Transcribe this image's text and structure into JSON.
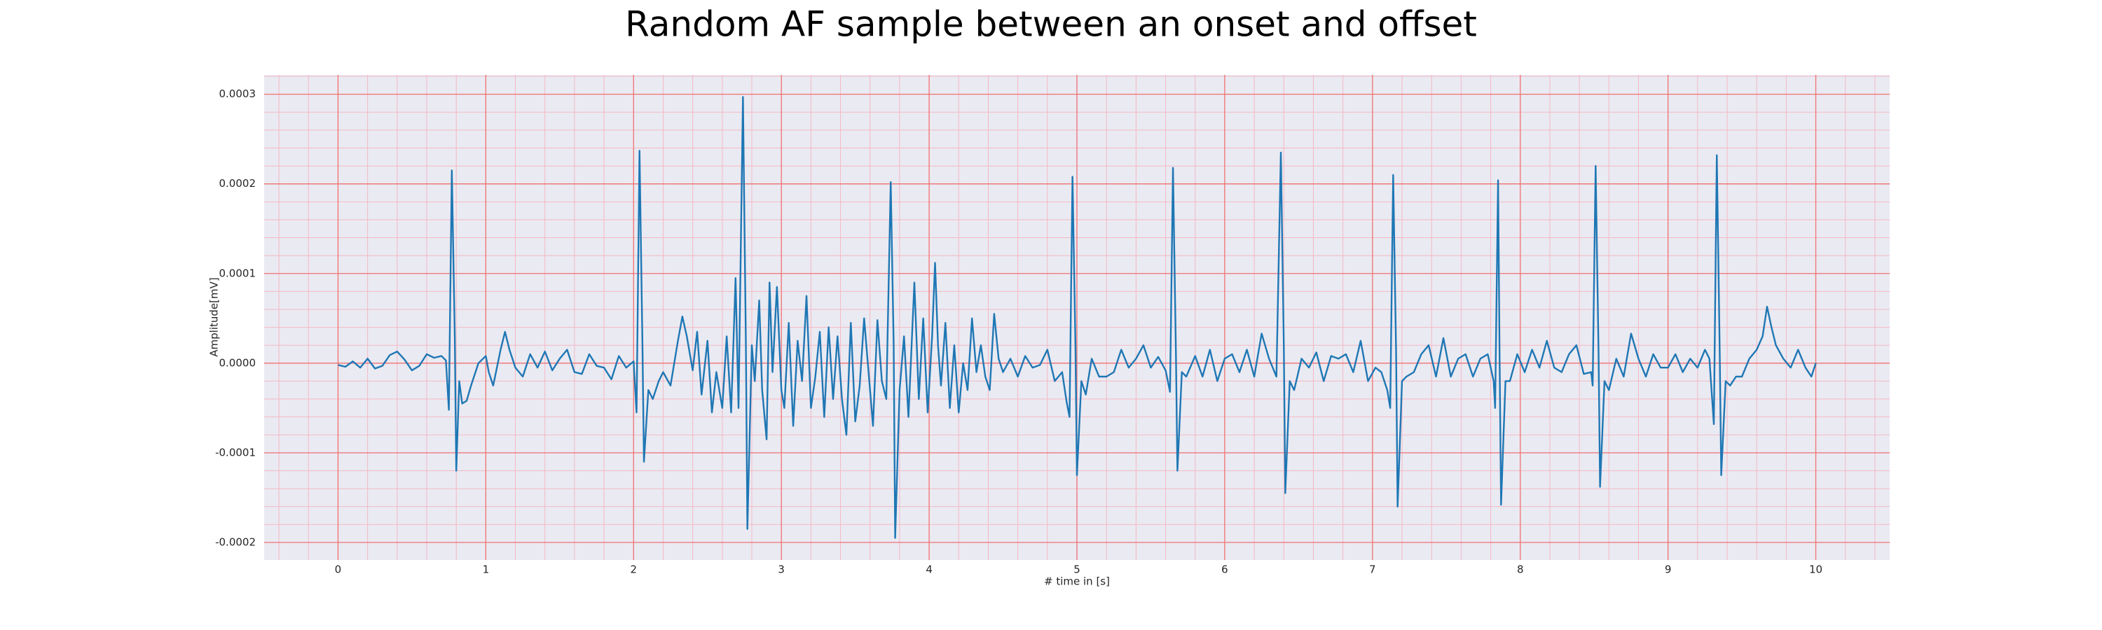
{
  "chart_data": {
    "type": "line",
    "title": "Random AF sample between an onset and offset",
    "xlabel": "# time in [s]",
    "ylabel": "Amplitude[mV]",
    "color": "#1f77b4",
    "grid": true,
    "minor_grid": true,
    "xlim": [
      -0.5,
      10.5
    ],
    "ylim": [
      -0.0002196,
      0.0003216
    ],
    "xticks": [
      0,
      1,
      2,
      3,
      4,
      5,
      6,
      7,
      8,
      9,
      10
    ],
    "yticks": [
      -0.0002,
      -0.0001,
      {
        "value": 0,
        "label": "0.0000"
      },
      0.0001,
      0.0002,
      0.0003
    ],
    "x": [
      0.0,
      0.05,
      0.1,
      0.15,
      0.2,
      0.25,
      0.3,
      0.35,
      0.4,
      0.45,
      0.5,
      0.55,
      0.6,
      0.65,
      0.7,
      0.73,
      0.75,
      0.77,
      0.79,
      0.8,
      0.82,
      0.84,
      0.87,
      0.9,
      0.95,
      1.0,
      1.02,
      1.05,
      1.1,
      1.13,
      1.16,
      1.2,
      1.25,
      1.3,
      1.35,
      1.4,
      1.45,
      1.5,
      1.55,
      1.6,
      1.65,
      1.7,
      1.75,
      1.8,
      1.85,
      1.9,
      1.95,
      2.0,
      2.02,
      2.04,
      2.06,
      2.07,
      2.1,
      2.13,
      2.17,
      2.2,
      2.25,
      2.3,
      2.33,
      2.36,
      2.4,
      2.43,
      2.46,
      2.5,
      2.53,
      2.56,
      2.6,
      2.63,
      2.66,
      2.69,
      2.71,
      2.74,
      2.76,
      2.77,
      2.8,
      2.82,
      2.85,
      2.87,
      2.9,
      2.92,
      2.94,
      2.97,
      3.0,
      3.02,
      3.05,
      3.08,
      3.11,
      3.14,
      3.17,
      3.2,
      3.23,
      3.26,
      3.29,
      3.32,
      3.35,
      3.38,
      3.41,
      3.44,
      3.47,
      3.5,
      3.53,
      3.56,
      3.59,
      3.62,
      3.65,
      3.68,
      3.71,
      3.74,
      3.76,
      3.77,
      3.8,
      3.83,
      3.86,
      3.9,
      3.93,
      3.96,
      3.99,
      4.02,
      4.04,
      4.06,
      4.08,
      4.11,
      4.14,
      4.17,
      4.2,
      4.23,
      4.26,
      4.29,
      4.32,
      4.35,
      4.38,
      4.41,
      4.44,
      4.47,
      4.5,
      4.55,
      4.6,
      4.65,
      4.7,
      4.75,
      4.8,
      4.85,
      4.9,
      4.93,
      4.95,
      4.97,
      4.99,
      5.0,
      5.03,
      5.06,
      5.1,
      5.15,
      5.2,
      5.25,
      5.3,
      5.35,
      5.4,
      5.45,
      5.5,
      5.55,
      5.6,
      5.63,
      5.65,
      5.67,
      5.68,
      5.71,
      5.74,
      5.8,
      5.85,
      5.9,
      5.95,
      6.0,
      6.05,
      6.1,
      6.15,
      6.2,
      6.25,
      6.3,
      6.35,
      6.38,
      6.4,
      6.41,
      6.44,
      6.47,
      6.52,
      6.57,
      6.62,
      6.67,
      6.72,
      6.77,
      6.82,
      6.87,
      6.92,
      6.97,
      7.02,
      7.06,
      7.1,
      7.12,
      7.14,
      7.16,
      7.17,
      7.2,
      7.23,
      7.28,
      7.33,
      7.38,
      7.43,
      7.48,
      7.53,
      7.58,
      7.63,
      7.68,
      7.73,
      7.78,
      7.82,
      7.83,
      7.85,
      7.86,
      7.87,
      7.9,
      7.93,
      7.98,
      8.03,
      8.08,
      8.13,
      8.18,
      8.23,
      8.28,
      8.33,
      8.38,
      8.43,
      8.48,
      8.49,
      8.51,
      8.53,
      8.54,
      8.57,
      8.6,
      8.65,
      8.7,
      8.75,
      8.8,
      8.85,
      8.9,
      8.95,
      9.0,
      9.05,
      9.1,
      9.15,
      9.2,
      9.25,
      9.28,
      9.31,
      9.33,
      9.35,
      9.36,
      9.39,
      9.42,
      9.46,
      9.5,
      9.55,
      9.6,
      9.64,
      9.67,
      9.7,
      9.73,
      9.78,
      9.83,
      9.88,
      9.93,
      9.97,
      10.0
    ],
    "values": [
      -2e-06,
      -4e-06,
      2e-06,
      -5e-06,
      5e-06,
      -6e-06,
      -3e-06,
      9e-06,
      1.3e-05,
      4e-06,
      -8e-06,
      -3e-06,
      1e-05,
      6e-06,
      8e-06,
      3e-06,
      -5.2e-05,
      0.000215,
      3e-05,
      -0.00012,
      -2e-05,
      -4.5e-05,
      -4.2e-05,
      -2.5e-05,
      0,
      8e-06,
      -1e-05,
      -2.5e-05,
      1.5e-05,
      3.5e-05,
      1.5e-05,
      -5e-06,
      -1.5e-05,
      1e-05,
      -5e-06,
      1.3e-05,
      -8e-06,
      5e-06,
      1.5e-05,
      -1e-05,
      -1.2e-05,
      1e-05,
      -3e-06,
      -5e-06,
      -1.8e-05,
      8e-06,
      -5e-06,
      2e-06,
      -5.5e-05,
      0.000237,
      2e-05,
      -0.00011,
      -3e-05,
      -4e-05,
      -2e-05,
      -1e-05,
      -2.5e-05,
      2.5e-05,
      5.2e-05,
      3e-05,
      -8e-06,
      3.5e-05,
      -3.5e-05,
      2.5e-05,
      -5.5e-05,
      -1e-05,
      -5e-05,
      3e-05,
      -5.5e-05,
      9.5e-05,
      -5e-05,
      0.000297,
      2e-05,
      -0.000185,
      2e-05,
      -2e-05,
      7e-05,
      -3e-05,
      -8.5e-05,
      9e-05,
      -1e-05,
      8.5e-05,
      -3e-05,
      -5e-05,
      4.5e-05,
      -7e-05,
      2.5e-05,
      -2e-05,
      7.5e-05,
      -5e-05,
      -1.5e-05,
      3.5e-05,
      -6e-05,
      4e-05,
      -4e-05,
      3e-05,
      -4e-05,
      -8e-05,
      4.5e-05,
      -6.5e-05,
      -2.5e-05,
      5e-05,
      -1e-05,
      -7e-05,
      4.8e-05,
      -2e-05,
      -4e-05,
      0.000202,
      2e-05,
      -0.000195,
      -3e-05,
      3e-05,
      -6e-05,
      9e-05,
      -4e-05,
      5e-05,
      -5.5e-05,
      3e-05,
      0.000112,
      2e-05,
      -2.5e-05,
      4.5e-05,
      -5e-05,
      2e-05,
      -5.5e-05,
      0,
      -3e-05,
      5e-05,
      -1e-05,
      2e-05,
      -1.5e-05,
      -3e-05,
      5.5e-05,
      5e-06,
      -1e-05,
      5e-06,
      -1.5e-05,
      8e-06,
      -5e-06,
      -2e-06,
      1.5e-05,
      -2e-05,
      -1e-05,
      -4.3e-05,
      -6e-05,
      0.000208,
      2e-05,
      -0.000125,
      -2e-05,
      -3.5e-05,
      5e-06,
      -1.5e-05,
      -1.5e-05,
      -1e-05,
      1.5e-05,
      -5e-06,
      5e-06,
      2e-05,
      -5e-06,
      7e-06,
      -8e-06,
      -3.2e-05,
      0.000218,
      1e-05,
      -0.00012,
      -1e-05,
      -1.5e-05,
      8e-06,
      -1.5e-05,
      1.5e-05,
      -2e-05,
      5e-06,
      1e-05,
      -1e-05,
      1.5e-05,
      -1.5e-05,
      3.3e-05,
      5e-06,
      -1.5e-05,
      0.000235,
      2e-05,
      -0.000145,
      -2e-05,
      -3e-05,
      5e-06,
      -5e-06,
      1.2e-05,
      -2e-05,
      8e-06,
      5e-06,
      1e-05,
      -1e-05,
      2.5e-05,
      -2e-05,
      -5e-06,
      -1e-05,
      -3e-05,
      -5e-05,
      0.00021,
      1e-05,
      -0.00016,
      -2e-05,
      -1.5e-05,
      -1e-05,
      1e-05,
      2e-05,
      -1.5e-05,
      2.8e-05,
      -1.5e-05,
      5e-06,
      1e-05,
      -1.5e-05,
      5e-06,
      1e-05,
      -2e-05,
      -5e-05,
      0.000204,
      1e-05,
      -0.000158,
      -2e-05,
      -2e-05,
      1e-05,
      -1e-05,
      1.5e-05,
      -5e-06,
      2.5e-05,
      -5e-06,
      -1e-05,
      1e-05,
      2e-05,
      -1.2e-05,
      -1e-05,
      -2.5e-05,
      0.00022,
      1e-05,
      -0.000138,
      -2e-05,
      -3e-05,
      5e-06,
      -1.5e-05,
      3.3e-05,
      5e-06,
      -1.5e-05,
      1e-05,
      -5e-06,
      -5e-06,
      1e-05,
      -1e-05,
      5e-06,
      -5e-06,
      1.5e-05,
      5e-06,
      -6.8e-05,
      0.000232,
      1e-05,
      -0.000125,
      -2e-05,
      -2.5e-05,
      -1.5e-05,
      -1.5e-05,
      5e-06,
      1.5e-05,
      3e-05,
      6.3e-05,
      4e-05,
      2e-05,
      5e-06,
      -5e-06,
      1.5e-05,
      -5e-06,
      -1.5e-05,
      0
    ]
  }
}
